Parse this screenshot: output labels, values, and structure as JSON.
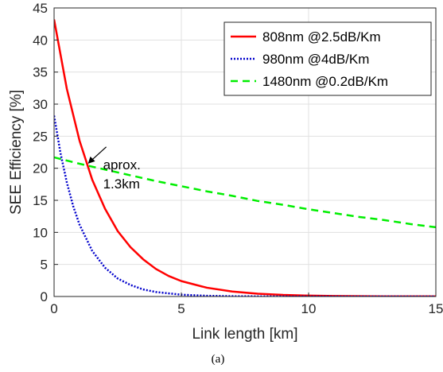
{
  "chart_data": {
    "type": "line",
    "xlabel": "Link length [km]",
    "ylabel": "SEE Efficiency [%]",
    "xlim": [
      0,
      15
    ],
    "ylim": [
      0,
      45
    ],
    "xticks": [
      0,
      5,
      10,
      15
    ],
    "yticks": [
      0,
      5,
      10,
      15,
      20,
      25,
      30,
      35,
      40,
      45
    ],
    "grid": true,
    "legend_position": "top-right",
    "caption": "(a)",
    "series": [
      {
        "name": "808nm @2.5dB/Km",
        "color": "#ff0000",
        "style": "solid",
        "x": [
          0,
          0.5,
          1,
          1.5,
          2,
          2.5,
          3,
          3.5,
          4,
          4.5,
          5,
          6,
          7,
          8,
          9,
          10,
          11,
          12,
          13,
          14,
          15
        ],
        "y": [
          43.2,
          32.4,
          24.3,
          18.2,
          13.7,
          10.2,
          7.7,
          5.8,
          4.3,
          3.2,
          2.4,
          1.37,
          0.77,
          0.43,
          0.24,
          0.14,
          0.08,
          0.04,
          0.02,
          0.01,
          0.01
        ]
      },
      {
        "name": "980nm @4dB/Km",
        "color": "#0000cc",
        "style": "dotted",
        "x": [
          0,
          0.25,
          0.5,
          0.75,
          1,
          1.5,
          2,
          2.5,
          3,
          3.5,
          4,
          5,
          6,
          7,
          8,
          9,
          10,
          12,
          15
        ],
        "y": [
          28.2,
          22.4,
          17.8,
          14.1,
          11.2,
          7.1,
          4.5,
          2.8,
          1.8,
          1.1,
          0.7,
          0.28,
          0.11,
          0.04,
          0.02,
          0.01,
          0,
          0,
          0
        ]
      },
      {
        "name": "1480nm @0.2dB/Km",
        "color": "#00ee00",
        "style": "dashed",
        "x": [
          0,
          1,
          2,
          3,
          4,
          5,
          6,
          7,
          8,
          9,
          10,
          11,
          12,
          13,
          14,
          15
        ],
        "y": [
          21.7,
          20.7,
          19.8,
          18.9,
          18.0,
          17.2,
          16.4,
          15.7,
          14.9,
          14.3,
          13.6,
          13.0,
          12.4,
          11.9,
          11.3,
          10.8
        ]
      }
    ],
    "annotations": [
      {
        "lines": [
          "aprox.",
          "1.3km"
        ],
        "x": 1.3,
        "y": 20.6
      }
    ]
  }
}
